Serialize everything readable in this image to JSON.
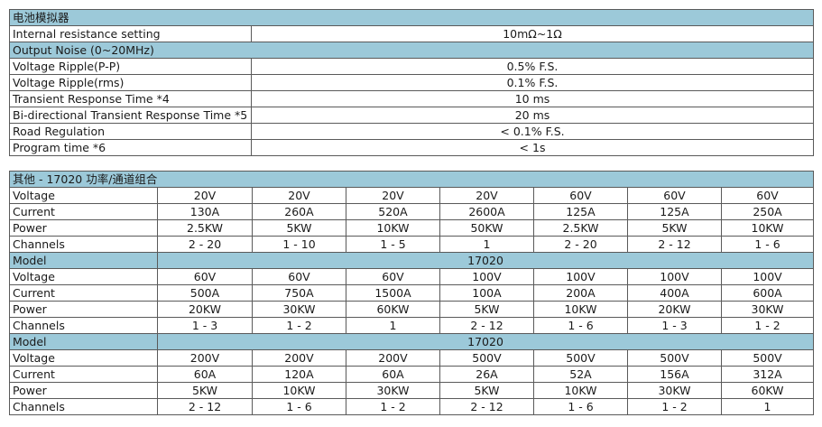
{
  "battery_table": {
    "title": "电池模拟器",
    "rows": [
      {
        "label": "Internal resistance setting",
        "value": "10mΩ~1Ω"
      }
    ],
    "subheader": "Output Noise (0~20MHz)",
    "rows2": [
      {
        "label": "Voltage Ripple(P-P)",
        "value": "0.5% F.S."
      },
      {
        "label": "Voltage Ripple(rms)",
        "value": "0.1% F.S."
      },
      {
        "label": "Transient Response Time *4",
        "value": "10 ms"
      },
      {
        "label": "Bi-directional Transient Response Time *5",
        "value": "20 ms"
      },
      {
        "label": "Road Regulation",
        "value": "< 0.1% F.S."
      },
      {
        "label": "Program time *6",
        "value": "< 1s"
      }
    ]
  },
  "combo_table": {
    "title": "其他 - 17020 功率/通道组合",
    "groups": [
      {
        "voltage_label": "Voltage",
        "current_label": "Current",
        "power_label": "Power",
        "channels_label": "Channels",
        "voltage": [
          "20V",
          "20V",
          "20V",
          "20V",
          "60V",
          "60V",
          "60V"
        ],
        "current": [
          "130A",
          "260A",
          "520A",
          "2600A",
          "125A",
          "125A",
          "250A"
        ],
        "power": [
          "2.5KW",
          "5KW",
          "10KW",
          "50KW",
          "2.5KW",
          "5KW",
          "10KW"
        ],
        "channels": [
          "2 - 20",
          "1 - 10",
          "1 - 5",
          "1",
          "2 - 20",
          "2 - 12",
          "1 - 6"
        ]
      },
      {
        "model_label": "Model",
        "model_value": "17020",
        "voltage_label": "Voltage",
        "current_label": "Current",
        "power_label": "Power",
        "channels_label": "Channels",
        "voltage": [
          "60V",
          "60V",
          "60V",
          "100V",
          "100V",
          "100V",
          "100V"
        ],
        "current": [
          "500A",
          "750A",
          "1500A",
          "100A",
          "200A",
          "400A",
          "600A"
        ],
        "power": [
          "20KW",
          "30KW",
          "60KW",
          "5KW",
          "10KW",
          "20KW",
          "30KW"
        ],
        "channels": [
          "1 - 3",
          "1 - 2",
          "1",
          "2 - 12",
          "1 - 6",
          "1 - 3",
          "1 - 2"
        ]
      },
      {
        "model_label": "Model",
        "model_value": "17020",
        "voltage_label": "Voltage",
        "current_label": "Current",
        "power_label": "Power",
        "channels_label": "Channels",
        "voltage": [
          "200V",
          "200V",
          "200V",
          "500V",
          "500V",
          "500V",
          "500V"
        ],
        "current": [
          "60A",
          "120A",
          "60A",
          "26A",
          "52A",
          "156A",
          "312A"
        ],
        "power": [
          "5KW",
          "10KW",
          "30KW",
          "5KW",
          "10KW",
          "30KW",
          "60KW"
        ],
        "channels": [
          "2 - 12",
          "1 - 6",
          "1 - 2",
          "2 - 12",
          "1 - 6",
          "1 - 2",
          "1"
        ]
      }
    ]
  }
}
